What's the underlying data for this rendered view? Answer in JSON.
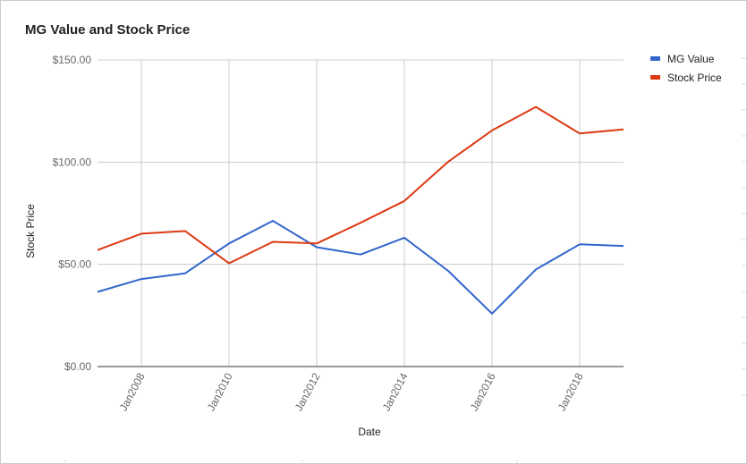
{
  "chart_data": {
    "type": "line",
    "title": "MG Value and Stock Price",
    "xlabel": "Date",
    "ylabel": "Stock Price",
    "x": [
      "2007-01",
      "2008-01",
      "2009-01",
      "2010-01",
      "2011-01",
      "2012-01",
      "2013-01",
      "2014-01",
      "2015-01",
      "2016-01",
      "2017-01",
      "2018-01",
      "2019-01"
    ],
    "x_tick_labels": [
      "Jan2008",
      "Jan2010",
      "Jan2012",
      "Jan2014",
      "Jan2016",
      "Jan2018"
    ],
    "x_tick_years": [
      2008,
      2010,
      2012,
      2014,
      2016,
      2018
    ],
    "ylim": [
      0,
      150
    ],
    "y_ticks": [
      0,
      50,
      100,
      150
    ],
    "y_tick_labels": [
      "$0.00",
      "$50.00",
      "$100.00",
      "$150.00"
    ],
    "grid": true,
    "legend_position": "right",
    "series": [
      {
        "name": "MG Value",
        "color": "#3366cc",
        "values": [
          36.5,
          42.8,
          45.6,
          60.2,
          71.3,
          58.4,
          54.8,
          63.0,
          46.8,
          25.9,
          47.5,
          59.8,
          59.0
        ]
      },
      {
        "name": "Stock Price",
        "color": "#dc3912",
        "values": [
          57.0,
          65.0,
          66.3,
          50.5,
          61.0,
          60.2,
          70.3,
          81.0,
          100.2,
          115.5,
          127.0,
          114.0,
          116.0
        ]
      }
    ]
  }
}
